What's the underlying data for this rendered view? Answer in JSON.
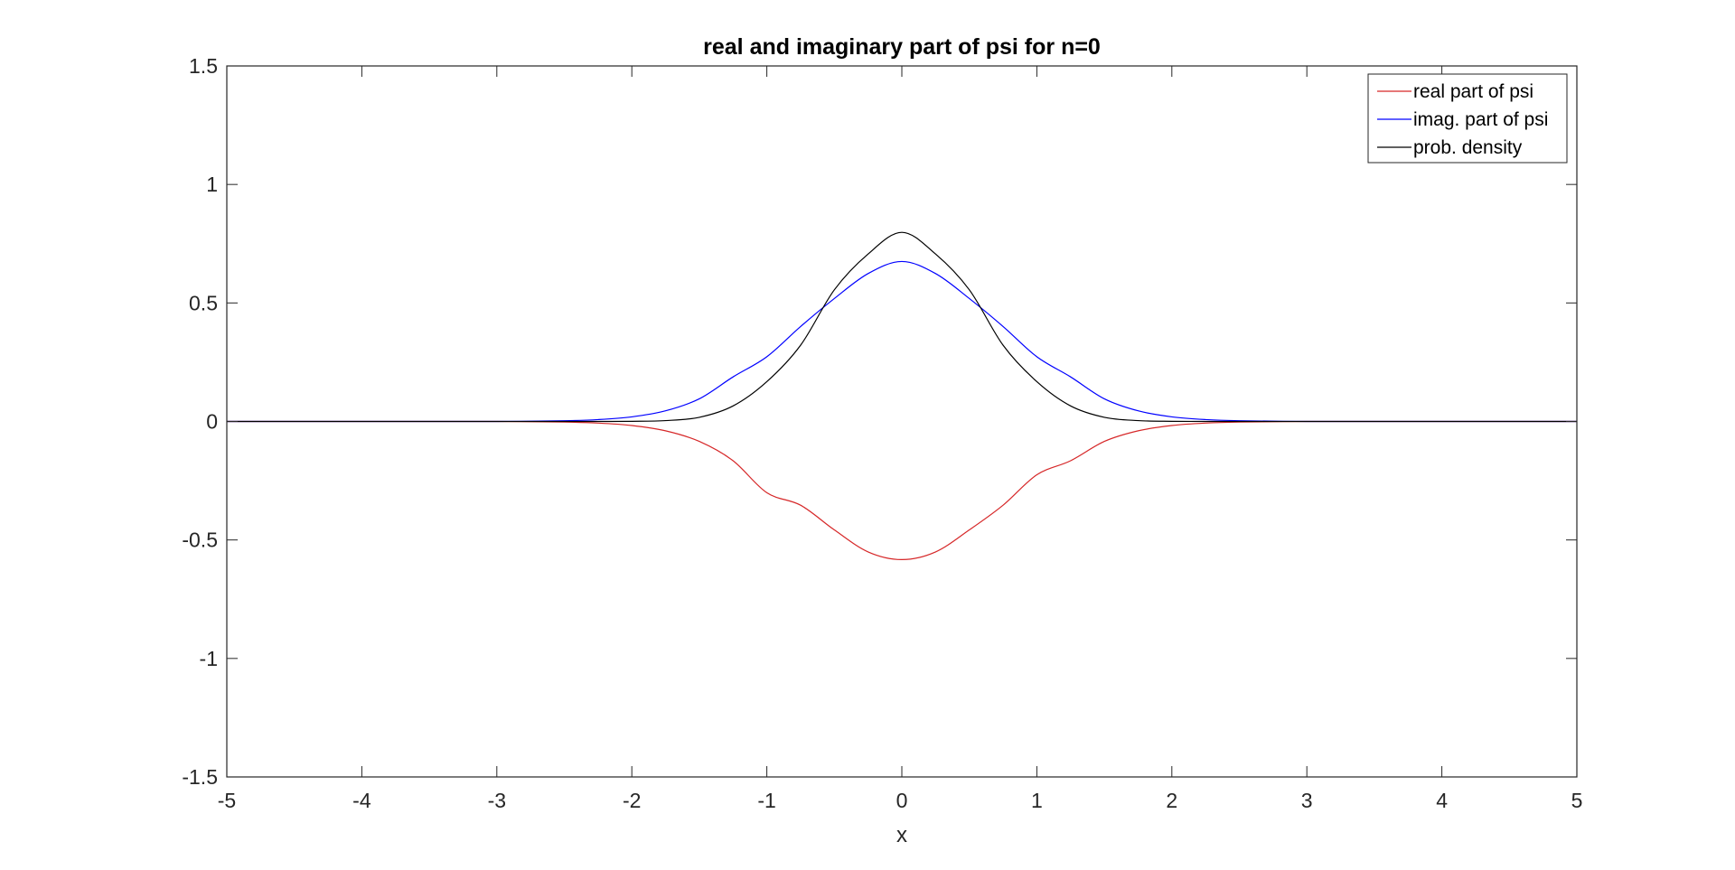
{
  "chart_data": {
    "type": "line",
    "title": "real and imaginary part of psi for n=0",
    "xlabel": "x",
    "ylabel": "",
    "xlim": [
      -5,
      5
    ],
    "ylim": [
      -1.5,
      1.5
    ],
    "xticks": [
      -5,
      -4,
      -3,
      -2,
      -1,
      0,
      1,
      2,
      3,
      4,
      5
    ],
    "xtick_labels": [
      "-5",
      "-4",
      "-3",
      "-2",
      "-1",
      "0",
      "1",
      "2",
      "3",
      "4",
      "5"
    ],
    "yticks": [
      -1.5,
      -1,
      -0.5,
      0,
      0.5,
      1,
      1.5
    ],
    "ytick_labels": [
      "-1.5",
      "-1",
      "-0.5",
      "0",
      "0.5",
      "1",
      "1.5"
    ],
    "grid": false,
    "legend_position": "top-right",
    "x": [
      -5,
      -4.5,
      -4,
      -3.5,
      -3,
      -2.5,
      -2.25,
      -2,
      -1.75,
      -1.5,
      -1.25,
      -1,
      -0.75,
      -0.5,
      -0.25,
      0,
      0.25,
      0.5,
      0.75,
      1,
      1.25,
      1.5,
      1.75,
      2,
      2.25,
      2.5,
      3,
      3.5,
      4,
      4.5,
      5
    ],
    "series": [
      {
        "name": "real part of psi",
        "color": "#d62728",
        "values": [
          0,
          0,
          0,
          0,
          -0.0001,
          -0.0026,
          -0.0069,
          -0.0172,
          -0.0396,
          -0.0843,
          -0.1658,
          -0.3006,
          -0.3534,
          -0.4576,
          -0.5505,
          -0.5829,
          -0.5505,
          -0.4576,
          -0.3534,
          -0.225,
          -0.1658,
          -0.0843,
          -0.0396,
          -0.0172,
          -0.0069,
          -0.0026,
          -0.0001,
          0,
          0,
          0,
          0
        ]
      },
      {
        "name": "imag. part of psi",
        "color": "#0000ff",
        "values": [
          0,
          0,
          0,
          0,
          0.0001,
          0.0029,
          0.0078,
          0.0194,
          0.0449,
          0.0956,
          0.188,
          0.273,
          0.4006,
          0.5187,
          0.624,
          0.675,
          0.624,
          0.5187,
          0.4006,
          0.273,
          0.188,
          0.0956,
          0.0449,
          0.0194,
          0.0078,
          0.0029,
          0.0001,
          0,
          0,
          0,
          0
        ]
      },
      {
        "name": "prob. density",
        "color": "#000000",
        "values": [
          0,
          0,
          0,
          0,
          0,
          0,
          0.0001,
          0.0006,
          0.0036,
          0.0175,
          0.0655,
          0.1679,
          0.3216,
          0.5553,
          0.7064,
          0.7979,
          0.7064,
          0.5553,
          0.3216,
          0.1679,
          0.0655,
          0.0175,
          0.0036,
          0.0006,
          0.0001,
          0,
          0,
          0,
          0,
          0,
          0
        ]
      }
    ]
  }
}
